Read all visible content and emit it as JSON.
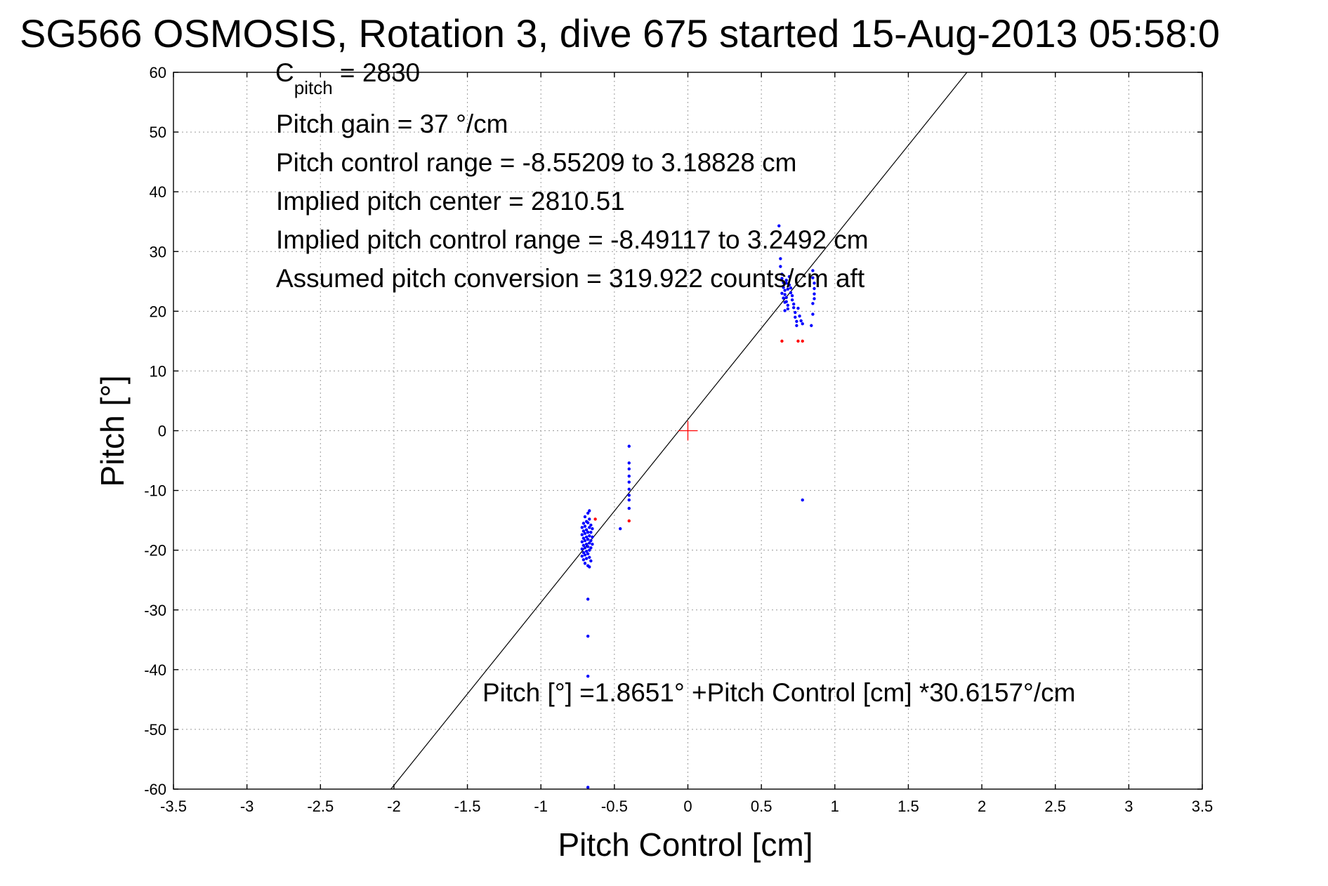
{
  "chart_data": {
    "type": "scatter",
    "title": "SG566 OSMOSIS, Rotation 3, dive 675 started 15-Aug-2013 05:58:0",
    "xlabel": "Pitch Control [cm]",
    "ylabel": "Pitch [°]",
    "xlim": [
      -3.5,
      3.5
    ],
    "ylim": [
      -60,
      60
    ],
    "xticks": [
      -3.5,
      -3,
      -2.5,
      -2,
      -1.5,
      -1,
      -0.5,
      0,
      0.5,
      1,
      1.5,
      2,
      2.5,
      3,
      3.5
    ],
    "xtick_labels": [
      "-3.5",
      "-3",
      "-2.5",
      "-2",
      "-1.5",
      "-1",
      "-0.5",
      "0",
      "0.5",
      "1",
      "1.5",
      "2",
      "2.5",
      "3",
      "3.5"
    ],
    "yticks": [
      -60,
      -50,
      -40,
      -30,
      -20,
      -10,
      0,
      10,
      20,
      30,
      40,
      50,
      60
    ],
    "ytick_labels": [
      "-60",
      "-50",
      "-40",
      "-30",
      "-20",
      "-10",
      "0",
      "10",
      "20",
      "30",
      "40",
      "50",
      "60"
    ],
    "grid": true,
    "fit": {
      "intercept": 1.8651,
      "slope": 30.6157
    },
    "center_marker": {
      "x": 0,
      "y": 0,
      "color": "#ff0000",
      "shape": "plus"
    },
    "series": [
      {
        "color": "#0000ff",
        "points": [
          [
            0.62,
            34.3
          ],
          [
            0.63,
            28.8
          ],
          [
            0.63,
            27.5
          ],
          [
            0.64,
            26.2
          ],
          [
            0.64,
            25.5
          ],
          [
            0.65,
            24.8
          ],
          [
            0.65,
            24.0
          ],
          [
            0.66,
            23.5
          ],
          [
            0.66,
            22.8
          ],
          [
            0.67,
            22.3
          ],
          [
            0.67,
            21.6
          ],
          [
            0.68,
            21.0
          ],
          [
            0.68,
            20.4
          ],
          [
            0.69,
            25.8
          ],
          [
            0.69,
            24.4
          ],
          [
            0.7,
            23.9
          ],
          [
            0.7,
            23.1
          ],
          [
            0.71,
            22.6
          ],
          [
            0.71,
            21.9
          ],
          [
            0.72,
            21.2
          ],
          [
            0.72,
            20.6
          ],
          [
            0.73,
            19.8
          ],
          [
            0.73,
            19.0
          ],
          [
            0.74,
            18.3
          ],
          [
            0.74,
            17.6
          ],
          [
            0.75,
            20.5
          ],
          [
            0.76,
            19.2
          ],
          [
            0.77,
            18.4
          ],
          [
            0.78,
            17.9
          ],
          [
            0.64,
            23.0
          ],
          [
            0.65,
            22.2
          ],
          [
            0.66,
            21.5
          ],
          [
            0.67,
            24.7
          ],
          [
            0.68,
            23.7
          ],
          [
            0.66,
            20.1
          ],
          [
            0.67,
            25.2
          ],
          [
            0.85,
            26.8
          ],
          [
            0.85,
            25.6
          ],
          [
            0.86,
            24.7
          ],
          [
            0.86,
            23.8
          ],
          [
            0.86,
            22.9
          ],
          [
            0.86,
            22.1
          ],
          [
            0.85,
            21.3
          ],
          [
            0.85,
            19.5
          ],
          [
            0.84,
            17.6
          ],
          [
            0.78,
            -11.6
          ],
          [
            -0.4,
            -2.6
          ],
          [
            -0.4,
            -5.4
          ],
          [
            -0.4,
            -6.4
          ],
          [
            -0.4,
            -7.6
          ],
          [
            -0.4,
            -8.6
          ],
          [
            -0.4,
            -9.8
          ],
          [
            -0.4,
            -10.8
          ],
          [
            -0.4,
            -11.6
          ],
          [
            -0.4,
            -13.0
          ],
          [
            -0.46,
            -16.4
          ],
          [
            -0.72,
            -16.2
          ],
          [
            -0.72,
            -17.4
          ],
          [
            -0.72,
            -18.6
          ],
          [
            -0.72,
            -19.8
          ],
          [
            -0.72,
            -21.0
          ],
          [
            -0.71,
            -15.5
          ],
          [
            -0.71,
            -16.8
          ],
          [
            -0.71,
            -18.0
          ],
          [
            -0.71,
            -19.2
          ],
          [
            -0.71,
            -20.4
          ],
          [
            -0.71,
            -21.6
          ],
          [
            -0.7,
            -14.4
          ],
          [
            -0.7,
            -16.0
          ],
          [
            -0.7,
            -17.2
          ],
          [
            -0.7,
            -18.4
          ],
          [
            -0.7,
            -19.6
          ],
          [
            -0.7,
            -20.8
          ],
          [
            -0.7,
            -22.2
          ],
          [
            -0.69,
            -15.2
          ],
          [
            -0.69,
            -16.6
          ],
          [
            -0.69,
            -17.8
          ],
          [
            -0.69,
            -19.0
          ],
          [
            -0.69,
            -20.2
          ],
          [
            -0.69,
            -21.4
          ],
          [
            -0.68,
            -13.8
          ],
          [
            -0.68,
            -15.4
          ],
          [
            -0.68,
            -17.0
          ],
          [
            -0.68,
            -18.2
          ],
          [
            -0.68,
            -19.4
          ],
          [
            -0.68,
            -20.6
          ],
          [
            -0.68,
            -22.6
          ],
          [
            -0.67,
            -13.4
          ],
          [
            -0.67,
            -14.8
          ],
          [
            -0.67,
            -16.2
          ],
          [
            -0.67,
            -17.6
          ],
          [
            -0.67,
            -18.8
          ],
          [
            -0.67,
            -20.0
          ],
          [
            -0.67,
            -21.2
          ],
          [
            -0.67,
            -22.8
          ],
          [
            -0.66,
            -15.8
          ],
          [
            -0.66,
            -17.0
          ],
          [
            -0.66,
            -18.4
          ],
          [
            -0.66,
            -19.6
          ],
          [
            -0.66,
            -21.8
          ],
          [
            -0.65,
            -16.4
          ],
          [
            -0.65,
            -17.8
          ],
          [
            -0.65,
            -19.0
          ],
          [
            -0.68,
            -28.2
          ],
          [
            -0.68,
            -34.4
          ],
          [
            -0.68,
            -41.1
          ],
          [
            -0.68,
            -59.7
          ]
        ]
      },
      {
        "color": "#ff0000",
        "points": [
          [
            0.64,
            15.0
          ],
          [
            0.75,
            15.0
          ],
          [
            0.78,
            15.0
          ],
          [
            -0.63,
            -14.8
          ],
          [
            -0.4,
            -15.1
          ]
        ]
      }
    ],
    "annotations": {
      "cpitch_main": "C",
      "cpitch_sub": "pitch",
      "cpitch_value": " = 2830",
      "pitch_gain": "Pitch gain = 37 °/cm",
      "control_range": "Pitch control range = -8.55209 to 3.18828 cm",
      "implied_center": "Implied pitch center = 2810.51",
      "implied_range": "Implied pitch control range = -8.49117 to 3.2492 cm",
      "assumed_conversion": "Assumed pitch conversion = 319.922 counts/cm aft",
      "fit_equation": "Pitch [°] =1.8651° +Pitch Control [cm] *30.6157°/cm"
    }
  }
}
